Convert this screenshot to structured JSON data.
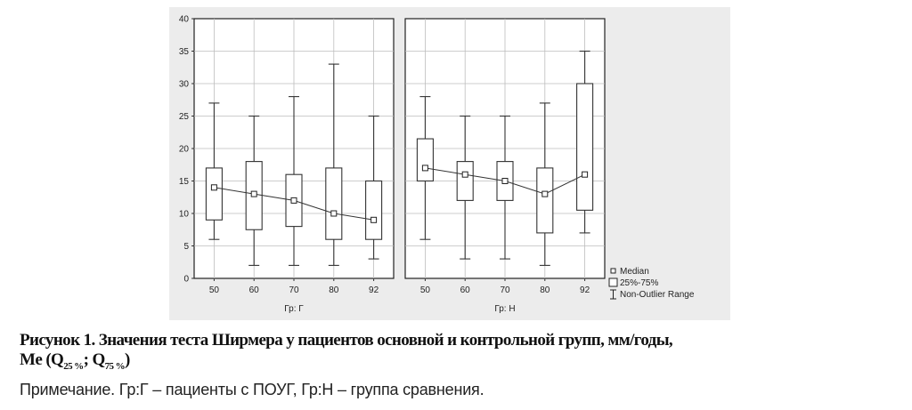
{
  "chart_data": {
    "type": "box",
    "ylim": [
      0,
      40
    ],
    "y_ticks": [
      0,
      5,
      10,
      15,
      20,
      25,
      30,
      35,
      40
    ],
    "panels": [
      {
        "xlabel": "Гр: Г",
        "categories": [
          "50",
          "60",
          "70",
          "80",
          "92"
        ],
        "median": [
          14,
          13,
          12,
          10,
          9
        ],
        "q25": [
          9,
          7.5,
          8,
          6,
          6
        ],
        "q75": [
          17,
          18,
          16,
          17,
          15
        ],
        "min": [
          6,
          2,
          2,
          2,
          3
        ],
        "max": [
          27,
          25,
          28,
          33,
          25
        ]
      },
      {
        "xlabel": "Гр: Н",
        "categories": [
          "50",
          "60",
          "70",
          "80",
          "92"
        ],
        "median": [
          17,
          16,
          15,
          13,
          16
        ],
        "q25": [
          15,
          12,
          12,
          7,
          10.5
        ],
        "q75": [
          21.5,
          18,
          18,
          17,
          30
        ],
        "min": [
          6,
          3,
          3,
          2,
          7
        ],
        "max": [
          28,
          25,
          25,
          27,
          35
        ]
      }
    ],
    "legend": [
      "Median",
      "25%-75%",
      "Non-Outlier Range"
    ],
    "legend_position": "bottom-right"
  },
  "caption": {
    "line1": "Рисунок 1. Значения теста Ширмера у пациентов основной и контрольной групп, мм/годы,",
    "line2_prefix": "Me (Q",
    "sub1": "25 %",
    "mid": "; Q",
    "sub2": "75 %",
    "suffix": ")"
  },
  "note": "Примечание. Гр:Г – пациенты с ПОУГ, Гр:Н – группа сравнения."
}
